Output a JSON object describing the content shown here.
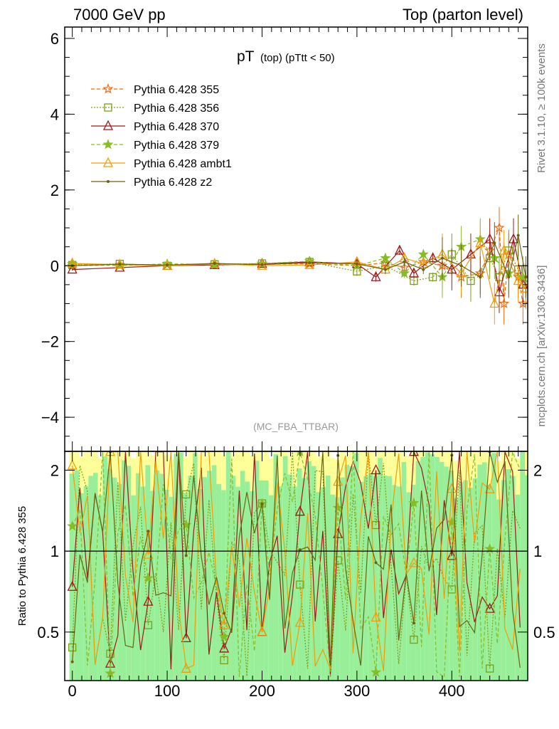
{
  "header": {
    "left": "7000 GeV pp",
    "right": "Top (parton level)"
  },
  "side": {
    "rivet": "Rivet 3.1.10, ≥ 100k events",
    "mcplots": "mcplots.cern.ch [arXiv:1306.3436]"
  },
  "chart_data": {
    "type": "line",
    "title_main": "pT",
    "title_sub": "(top) (pTtt < 50)",
    "analysis_label": "(MC_FBA_TTBAR)",
    "upper": {
      "ylim": [
        -4.9,
        6.3
      ],
      "yticks": [
        -4,
        -2,
        0,
        2,
        4,
        6
      ],
      "ytick_labels": [
        "−4",
        "−2",
        "0",
        "2",
        "4",
        "6"
      ]
    },
    "ratio": {
      "ylabel": "Ratio to Pythia 6.428 355",
      "ylim": [
        0.33,
        2.35
      ],
      "yticks": [
        0.5,
        1,
        2
      ],
      "ytick_labels": [
        "0.5",
        "1",
        "2"
      ]
    },
    "xlim": [
      -8,
      480
    ],
    "xticks": [
      0,
      100,
      200,
      300,
      400
    ],
    "xtick_labels": [
      "0",
      "100",
      "200",
      "300",
      "400"
    ],
    "series": [
      {
        "name": "Pythia 6.428 355",
        "color": "#ee6a10",
        "marker": "star",
        "dash": "dashed",
        "points": [
          [
            0,
            0.0
          ],
          [
            50,
            0.02
          ],
          [
            100,
            0.03
          ],
          [
            150,
            0.02
          ],
          [
            200,
            0.04
          ],
          [
            250,
            0.05
          ],
          [
            300,
            0.0
          ],
          [
            330,
            0.08
          ],
          [
            350,
            -0.05
          ],
          [
            370,
            0.1
          ],
          [
            390,
            0.0
          ],
          [
            410,
            -0.3
          ],
          [
            430,
            -0.2
          ],
          [
            440,
            0.4
          ],
          [
            450,
            1.0
          ],
          [
            455,
            -1.0
          ],
          [
            460,
            0.3
          ],
          [
            470,
            -0.3
          ],
          [
            475,
            -1.0
          ]
        ]
      },
      {
        "name": "Pythia 6.428 356",
        "color": "#7c9e14",
        "marker": "square",
        "dash": "dotted",
        "points": [
          [
            0,
            0.02
          ],
          [
            50,
            0.05
          ],
          [
            100,
            0.0
          ],
          [
            150,
            0.04
          ],
          [
            200,
            0.06
          ],
          [
            250,
            0.1
          ],
          [
            300,
            -0.15
          ],
          [
            330,
            0.0
          ],
          [
            360,
            -0.4
          ],
          [
            380,
            -0.3
          ],
          [
            400,
            0.3
          ],
          [
            420,
            -0.4
          ],
          [
            440,
            0.2
          ],
          [
            450,
            -0.3
          ],
          [
            460,
            0.4
          ],
          [
            470,
            -0.1
          ],
          [
            478,
            -0.5
          ]
        ]
      },
      {
        "name": "Pythia 6.428 370",
        "color": "#a01818",
        "marker": "triangle",
        "dash": "solid",
        "points": [
          [
            0,
            -0.1
          ],
          [
            50,
            -0.05
          ],
          [
            100,
            0.0
          ],
          [
            150,
            0.02
          ],
          [
            200,
            0.05
          ],
          [
            250,
            0.1
          ],
          [
            300,
            0.05
          ],
          [
            320,
            -0.3
          ],
          [
            345,
            0.4
          ],
          [
            360,
            -0.2
          ],
          [
            380,
            0.2
          ],
          [
            400,
            -0.1
          ],
          [
            420,
            0.3
          ],
          [
            440,
            0.7
          ],
          [
            450,
            -0.7
          ],
          [
            465,
            0.7
          ],
          [
            475,
            -0.5
          ]
        ]
      },
      {
        "name": "Pythia 6.428 379",
        "color": "#86bc28",
        "marker": "star6",
        "dash": "dashed",
        "points": [
          [
            0,
            0.05
          ],
          [
            50,
            0.0
          ],
          [
            100,
            0.05
          ],
          [
            150,
            0.03
          ],
          [
            200,
            0.06
          ],
          [
            250,
            0.12
          ],
          [
            300,
            0.0
          ],
          [
            330,
            0.2
          ],
          [
            350,
            -0.2
          ],
          [
            370,
            0.3
          ],
          [
            390,
            -0.3
          ],
          [
            410,
            0.5
          ],
          [
            430,
            0.7
          ],
          [
            445,
            0.2
          ],
          [
            460,
            -0.2
          ],
          [
            475,
            -0.3
          ]
        ]
      },
      {
        "name": "Pythia 6.428 ambt1",
        "color": "#f29c0a",
        "marker": "triangle",
        "dash": "solid",
        "points": [
          [
            0,
            0.06
          ],
          [
            50,
            0.03
          ],
          [
            100,
            0.0
          ],
          [
            150,
            0.05
          ],
          [
            200,
            0.0
          ],
          [
            250,
            0.02
          ],
          [
            300,
            0.1
          ],
          [
            330,
            -0.1
          ],
          [
            350,
            0.2
          ],
          [
            370,
            0.05
          ],
          [
            390,
            0.3
          ],
          [
            410,
            -0.2
          ],
          [
            430,
            0.6
          ],
          [
            445,
            -1.0
          ],
          [
            455,
            0.4
          ],
          [
            470,
            -0.4
          ],
          [
            478,
            -0.6
          ]
        ]
      },
      {
        "name": "Pythia 6.428 z2",
        "color": "#6b6410",
        "marker": "dot",
        "dash": "solid",
        "points": [
          [
            0,
            0.0
          ],
          [
            50,
            0.04
          ],
          [
            100,
            0.02
          ],
          [
            150,
            0.06
          ],
          [
            200,
            0.03
          ],
          [
            250,
            0.08
          ],
          [
            300,
            0.05
          ],
          [
            330,
            -0.1
          ],
          [
            350,
            0.1
          ],
          [
            370,
            -0.1
          ],
          [
            390,
            0.2
          ],
          [
            410,
            0.0
          ],
          [
            430,
            -0.3
          ],
          [
            445,
            0.6
          ],
          [
            460,
            -0.3
          ],
          [
            470,
            0.8
          ],
          [
            478,
            -0.3
          ]
        ]
      }
    ],
    "ratio_series_note": "ratios fluctuate strongly across the full range"
  }
}
